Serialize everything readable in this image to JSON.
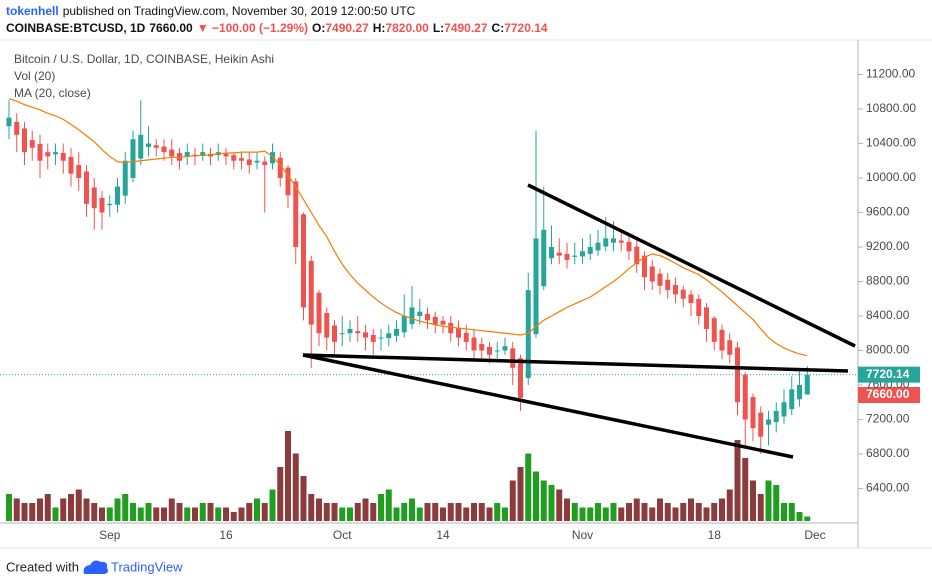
{
  "header": {
    "author": "tokenhell",
    "published": "published on TradingView.com, November 30, 2019 12:00:50 UTC",
    "symbol": "COINBASE:BTCUSD, 1D",
    "price": "7660.00",
    "change": "▼ −100.00 (−1.29%)",
    "ohlc": [
      {
        "label": "O:",
        "value": "7490.27"
      },
      {
        "label": "H:",
        "value": "7820.00"
      },
      {
        "label": "L:",
        "value": "7490.27"
      },
      {
        "label": "C:",
        "value": "7720.14"
      }
    ]
  },
  "chart_data": {
    "type": "candlestick",
    "categories": [
      null,
      null,
      null,
      null,
      null,
      null,
      null,
      null,
      null,
      null,
      null,
      null,
      null,
      "Sep",
      null,
      null,
      null,
      null,
      null,
      null,
      null,
      null,
      null,
      null,
      null,
      null,
      null,
      null,
      "16",
      null,
      null,
      null,
      null,
      null,
      null,
      null,
      null,
      null,
      null,
      null,
      null,
      null,
      null,
      "Oct",
      null,
      null,
      null,
      null,
      null,
      null,
      null,
      null,
      null,
      null,
      null,
      null,
      "14",
      null,
      null,
      null,
      null,
      null,
      null,
      null,
      null,
      null,
      null,
      null,
      null,
      null,
      null,
      null,
      null,
      null,
      "Nov",
      null,
      null,
      null,
      null,
      null,
      null,
      null,
      null,
      null,
      null,
      null,
      null,
      null,
      null,
      null,
      null,
      "18",
      null,
      null,
      null,
      null,
      null,
      null,
      null,
      null,
      null,
      null,
      null,
      null,
      "Dec"
    ],
    "ylim": [
      6000,
      11600
    ],
    "yticks": [
      {
        "value": 6400,
        "label": "6400.00"
      },
      {
        "value": 6800,
        "label": "6800.00"
      },
      {
        "value": 7200,
        "label": "7200.00"
      },
      {
        "value": 7600,
        "label": "7600.00"
      },
      {
        "value": 8000,
        "label": "8000.00"
      },
      {
        "value": 8400,
        "label": "8400.00"
      },
      {
        "value": 8800,
        "label": "8800.00"
      },
      {
        "value": 9200,
        "label": "9200.00"
      },
      {
        "value": 9600,
        "label": "9600.00"
      },
      {
        "value": 10000,
        "label": "10000.00"
      },
      {
        "value": 10400,
        "label": "10400.00"
      },
      {
        "value": 10800,
        "label": "10800.00"
      },
      {
        "value": 11200,
        "label": "11200.00"
      }
    ],
    "series": [
      {
        "name": "Bitcoin / U.S. Dollar, 1D, COINBASE, Heikin Ashi",
        "type": "candlestick",
        "up_color": "#26a69a",
        "down_color": "#ef5350",
        "open": [
          10600,
          10650,
          10575,
          10440,
          10395,
          10300,
          10275,
          10290,
          10245,
          10150,
          10075,
          9890,
          9770,
          9685,
          9690,
          9795,
          10000,
          10225,
          10360,
          10380,
          10365,
          10330,
          10290,
          10245,
          10270,
          10260,
          10280,
          10265,
          10280,
          10265,
          10230,
          10215,
          10180,
          10190,
          10170,
          10235,
          10120,
          9960,
          9580,
          9040,
          8670,
          8435,
          8290,
          8195,
          8200,
          8225,
          8210,
          8180,
          8140,
          8145,
          8170,
          8210,
          8305,
          8400,
          8425,
          8390,
          8345,
          8320,
          8260,
          8205,
          8150,
          8075,
          8040,
          7995,
          8000,
          8025,
          7910,
          7680,
          8190,
          8745,
          9070,
          9135,
          9120,
          9085,
          9090,
          9120,
          9160,
          9205,
          9250,
          9275,
          9260,
          9205,
          9100,
          8975,
          8890,
          8820,
          8760,
          8705,
          8650,
          8600,
          8500,
          8375,
          8240,
          8120,
          8035,
          7720,
          7460,
          7280,
          7140,
          7170,
          7235,
          7320,
          7435,
          7490.27,
          null
        ],
        "high": [
          10900,
          10750,
          10650,
          10550,
          10500,
          10400,
          10400,
          10400,
          10350,
          10300,
          10150,
          10000,
          9850,
          9800,
          10000,
          10300,
          10550,
          10900,
          10600,
          10450,
          10450,
          10450,
          10350,
          10400,
          10350,
          10400,
          10350,
          10400,
          10350,
          10300,
          10300,
          10300,
          10300,
          10250,
          10400,
          10300,
          10150,
          10000,
          9600,
          9100,
          8700,
          8500,
          8350,
          8400,
          8350,
          8400,
          8300,
          8250,
          8250,
          8300,
          8350,
          8650,
          8750,
          8600,
          8500,
          8450,
          8400,
          8400,
          8350,
          8300,
          8250,
          8150,
          8100,
          8100,
          8150,
          8100,
          7950,
          8900,
          10550,
          9900,
          9450,
          9300,
          9250,
          9250,
          9300,
          9350,
          9400,
          9550,
          9500,
          9400,
          9350,
          9300,
          9150,
          9050,
          8950,
          8900,
          8850,
          8750,
          8700,
          8650,
          8550,
          8400,
          8300,
          8200,
          8100,
          7750,
          7500,
          7350,
          7300,
          7400,
          7550,
          7700,
          7800,
          7820,
          null
        ],
        "low": [
          10450,
          10300,
          10150,
          10200,
          10000,
          10100,
          10150,
          10050,
          9900,
          9850,
          9550,
          9400,
          9400,
          9550,
          9600,
          9700,
          9950,
          10150,
          10250,
          10250,
          10200,
          10150,
          10100,
          10150,
          10150,
          10200,
          10150,
          10200,
          10150,
          10100,
          10100,
          10050,
          10100,
          9600,
          10100,
          9900,
          9650,
          9000,
          8350,
          7800,
          8050,
          8000,
          7950,
          8050,
          8100,
          8100,
          8000,
          7950,
          8000,
          8050,
          8100,
          8150,
          8250,
          8300,
          8250,
          8200,
          8200,
          8100,
          8050,
          8000,
          7900,
          7900,
          7850,
          7900,
          7950,
          7600,
          7300,
          7600,
          8150,
          8700,
          9000,
          9000,
          8950,
          9000,
          9000,
          9050,
          9100,
          9150,
          9150,
          9150,
          9050,
          8900,
          8700,
          8700,
          8650,
          8600,
          8550,
          8500,
          8400,
          8300,
          8100,
          8000,
          7900,
          7850,
          7250,
          6900,
          6950,
          6800,
          6900,
          7050,
          7150,
          7250,
          7350,
          7490.27,
          null
        ],
        "close": [
          10700,
          10500,
          10300,
          10350,
          10200,
          10250,
          10300,
          10200,
          10050,
          10000,
          9700,
          9650,
          9600,
          9700,
          9900,
          10200,
          10450,
          10500,
          10400,
          10350,
          10300,
          10250,
          10200,
          10300,
          10250,
          10300,
          10250,
          10300,
          10250,
          10200,
          10200,
          10150,
          10200,
          10150,
          10300,
          10000,
          9800,
          9200,
          8500,
          8300,
          8200,
          8150,
          8100,
          8200,
          8250,
          8200,
          8150,
          8100,
          8150,
          8200,
          8250,
          8400,
          8500,
          8450,
          8350,
          8300,
          8300,
          8200,
          8150,
          8100,
          8000,
          8000,
          7950,
          8000,
          8050,
          7800,
          7450,
          8700,
          9300,
          9400,
          9200,
          9100,
          9050,
          9100,
          9150,
          9200,
          9250,
          9300,
          9300,
          9250,
          9150,
          9000,
          8850,
          8800,
          8750,
          8700,
          8650,
          8600,
          8550,
          8400,
          8250,
          8100,
          8000,
          7950,
          7400,
          7200,
          7100,
          7000,
          7200,
          7300,
          7400,
          7550,
          7600,
          7720.14,
          null
        ]
      },
      {
        "name": "Vol (20)",
        "type": "volume",
        "up_color": "#1f9e1f",
        "down_color": "#8b3b3b",
        "values": [
          30,
          25,
          20,
          20,
          25,
          30,
          15,
          25,
          30,
          35,
          25,
          20,
          15,
          15,
          25,
          30,
          20,
          15,
          20,
          15,
          15,
          25,
          20,
          15,
          15,
          20,
          20,
          15,
          15,
          10,
          15,
          20,
          25,
          20,
          35,
          60,
          100,
          75,
          50,
          30,
          25,
          20,
          20,
          15,
          15,
          20,
          25,
          20,
          30,
          35,
          15,
          20,
          25,
          15,
          20,
          20,
          15,
          20,
          20,
          15,
          20,
          20,
          15,
          20,
          15,
          45,
          60,
          75,
          55,
          45,
          40,
          35,
          25,
          20,
          15,
          15,
          20,
          15,
          20,
          15,
          20,
          25,
          20,
          15,
          25,
          20,
          15,
          20,
          25,
          20,
          15,
          20,
          25,
          35,
          90,
          70,
          45,
          30,
          45,
          40,
          20,
          20,
          10,
          5,
          null
        ]
      },
      {
        "name": "MA (20, close)",
        "type": "line",
        "color": "#f57c00",
        "values": [
          10920,
          10890,
          10850,
          10820,
          10790,
          10750,
          10720,
          10680,
          10620,
          10560,
          10490,
          10420,
          10330,
          10250,
          10190,
          10180,
          10190,
          10200,
          10210,
          10220,
          10230,
          10240,
          10240,
          10250,
          10260,
          10260,
          10270,
          10280,
          10290,
          10290,
          10300,
          10300,
          10300,
          10310,
          10250,
          10150,
          10030,
          9900,
          9750,
          9600,
          9450,
          9320,
          9150,
          9000,
          8880,
          8780,
          8700,
          8620,
          8550,
          8490,
          8440,
          8400,
          8370,
          8340,
          8320,
          8300,
          8280,
          8270,
          8260,
          8250,
          8240,
          8230,
          8220,
          8210,
          8200,
          8190,
          8180,
          8200,
          8280,
          8350,
          8400,
          8450,
          8500,
          8540,
          8580,
          8620,
          8680,
          8740,
          8800,
          8870,
          8950,
          9020,
          9080,
          9120,
          9100,
          9060,
          9010,
          8960,
          8920,
          8880,
          8820,
          8750,
          8680,
          8600,
          8520,
          8440,
          8360,
          8250,
          8150,
          8080,
          8030,
          7990,
          7960,
          7940,
          null
        ]
      }
    ]
  },
  "footer": {
    "created": "Created with",
    "brand": "TradingView"
  }
}
